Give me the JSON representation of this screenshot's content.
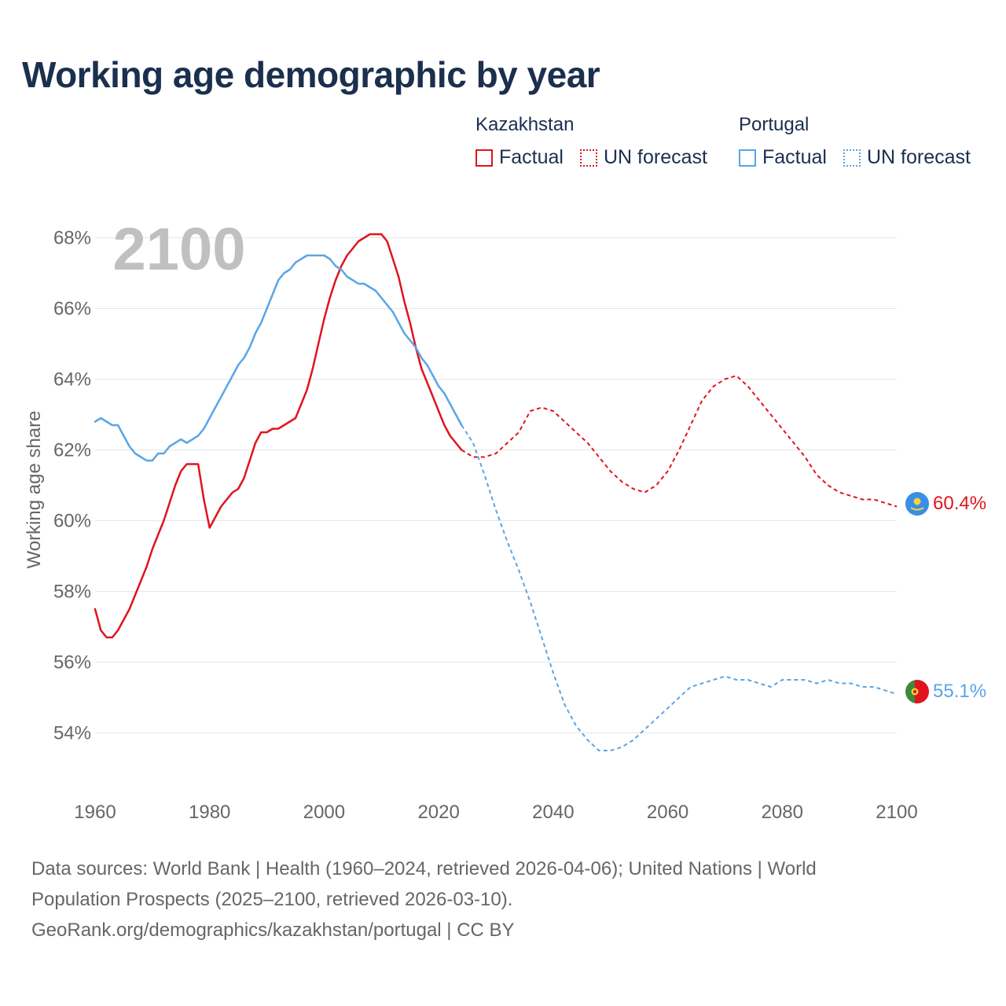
{
  "header": {
    "title": "Working age demographic by year"
  },
  "legend": {
    "groups": [
      {
        "name": "Kazakhstan",
        "factual_label": "Factual",
        "forecast_label": "UN forecast",
        "color": "#e0141e"
      },
      {
        "name": "Portugal",
        "factual_label": "Factual",
        "forecast_label": "UN forecast",
        "color": "#5aa5e6"
      }
    ]
  },
  "year_display": "2100",
  "end_labels": {
    "kazakhstan": "60.4%",
    "portugal": "55.1%"
  },
  "footer": {
    "line1": "Data sources: World Bank | Health (1960–2024, retrieved 2026-04-06); United Nations | World",
    "line2": "Population Prospects (2025–2100, retrieved 2026-03-10).",
    "line3": "GeoRank.org/demographics/kazakhstan/portugal | CC BY"
  },
  "colors": {
    "kazakhstan": "#e0141e",
    "portugal": "#5aa5e6",
    "grid": "#e6e6e6",
    "axis_text": "#666666"
  },
  "chart_data": {
    "type": "line",
    "title": "Working age demographic by year",
    "xlabel": "",
    "ylabel": "Working age share",
    "xlim": [
      1960,
      2100
    ],
    "ylim": [
      52.5,
      68.5
    ],
    "x_ticks": [
      1960,
      1980,
      2000,
      2020,
      2040,
      2060,
      2080,
      2100
    ],
    "x_tick_labels": [
      "1960",
      "1980",
      "2000",
      "2020",
      "2040",
      "2060",
      "2080",
      "2100"
    ],
    "y_ticks": [
      54,
      56,
      58,
      60,
      62,
      64,
      66,
      68
    ],
    "y_tick_labels": [
      "54%",
      "56%",
      "58%",
      "60%",
      "62%",
      "64%",
      "66%",
      "68%"
    ],
    "series": [
      {
        "name": "Kazakhstan Factual",
        "country": "Kazakhstan",
        "style": "solid",
        "x": [
          1960,
          1961,
          1962,
          1963,
          1964,
          1965,
          1966,
          1967,
          1968,
          1969,
          1970,
          1971,
          1972,
          1973,
          1974,
          1975,
          1976,
          1977,
          1978,
          1979,
          1980,
          1981,
          1982,
          1983,
          1984,
          1985,
          1986,
          1987,
          1988,
          1989,
          1990,
          1991,
          1992,
          1993,
          1994,
          1995,
          1996,
          1997,
          1998,
          1999,
          2000,
          2001,
          2002,
          2003,
          2004,
          2005,
          2006,
          2007,
          2008,
          2009,
          2010,
          2011,
          2012,
          2013,
          2014,
          2015,
          2016,
          2017,
          2018,
          2019,
          2020,
          2021,
          2022,
          2023,
          2024
        ],
        "y": [
          57.5,
          56.9,
          56.7,
          56.7,
          56.9,
          57.2,
          57.5,
          57.9,
          58.3,
          58.7,
          59.2,
          59.6,
          60.0,
          60.5,
          61.0,
          61.4,
          61.6,
          61.6,
          61.6,
          60.6,
          59.8,
          60.1,
          60.4,
          60.6,
          60.8,
          60.9,
          61.2,
          61.7,
          62.2,
          62.5,
          62.5,
          62.6,
          62.6,
          62.7,
          62.8,
          62.9,
          63.3,
          63.7,
          64.3,
          65.0,
          65.7,
          66.3,
          66.8,
          67.2,
          67.5,
          67.7,
          67.9,
          68.0,
          68.1,
          68.1,
          68.1,
          67.9,
          67.4,
          66.9,
          66.2,
          65.6,
          64.9,
          64.3,
          63.9,
          63.5,
          63.1,
          62.7,
          62.4,
          62.2,
          62.0
        ]
      },
      {
        "name": "Kazakhstan UN forecast",
        "country": "Kazakhstan",
        "style": "dotted",
        "x": [
          2024,
          2026,
          2028,
          2030,
          2032,
          2034,
          2036,
          2038,
          2040,
          2042,
          2044,
          2046,
          2048,
          2050,
          2052,
          2054,
          2056,
          2058,
          2060,
          2062,
          2064,
          2066,
          2068,
          2070,
          2072,
          2074,
          2076,
          2078,
          2080,
          2082,
          2084,
          2086,
          2088,
          2090,
          2092,
          2094,
          2096,
          2098,
          2100
        ],
        "y": [
          62.0,
          61.8,
          61.8,
          61.9,
          62.2,
          62.5,
          63.1,
          63.2,
          63.1,
          62.8,
          62.5,
          62.2,
          61.8,
          61.4,
          61.1,
          60.9,
          60.8,
          61.0,
          61.4,
          62.0,
          62.7,
          63.4,
          63.8,
          64.0,
          64.1,
          63.8,
          63.4,
          63.0,
          62.6,
          62.2,
          61.8,
          61.3,
          61.0,
          60.8,
          60.7,
          60.6,
          60.6,
          60.5,
          60.4
        ]
      },
      {
        "name": "Portugal Factual",
        "country": "Portugal",
        "style": "solid",
        "x": [
          1960,
          1961,
          1962,
          1963,
          1964,
          1965,
          1966,
          1967,
          1968,
          1969,
          1970,
          1971,
          1972,
          1973,
          1974,
          1975,
          1976,
          1977,
          1978,
          1979,
          1980,
          1981,
          1982,
          1983,
          1984,
          1985,
          1986,
          1987,
          1988,
          1989,
          1990,
          1991,
          1992,
          1993,
          1994,
          1995,
          1996,
          1997,
          1998,
          1999,
          2000,
          2001,
          2002,
          2003,
          2004,
          2005,
          2006,
          2007,
          2008,
          2009,
          2010,
          2011,
          2012,
          2013,
          2014,
          2015,
          2016,
          2017,
          2018,
          2019,
          2020,
          2021,
          2022,
          2023,
          2024
        ],
        "y": [
          62.8,
          62.9,
          62.8,
          62.7,
          62.7,
          62.4,
          62.1,
          61.9,
          61.8,
          61.7,
          61.7,
          61.9,
          61.9,
          62.1,
          62.2,
          62.3,
          62.2,
          62.3,
          62.4,
          62.6,
          62.9,
          63.2,
          63.5,
          63.8,
          64.1,
          64.4,
          64.6,
          64.9,
          65.3,
          65.6,
          66.0,
          66.4,
          66.8,
          67.0,
          67.1,
          67.3,
          67.4,
          67.5,
          67.5,
          67.5,
          67.5,
          67.4,
          67.2,
          67.1,
          66.9,
          66.8,
          66.7,
          66.7,
          66.6,
          66.5,
          66.3,
          66.1,
          65.9,
          65.6,
          65.3,
          65.1,
          64.9,
          64.6,
          64.4,
          64.1,
          63.8,
          63.6,
          63.3,
          63.0,
          62.7
        ]
      },
      {
        "name": "Portugal UN forecast",
        "country": "Portugal",
        "style": "dotted",
        "x": [
          2024,
          2026,
          2028,
          2030,
          2032,
          2034,
          2036,
          2038,
          2040,
          2042,
          2044,
          2046,
          2048,
          2050,
          2052,
          2054,
          2056,
          2058,
          2060,
          2062,
          2064,
          2066,
          2068,
          2070,
          2072,
          2074,
          2076,
          2078,
          2080,
          2082,
          2084,
          2086,
          2088,
          2090,
          2092,
          2094,
          2096,
          2098,
          2100
        ],
        "y": [
          62.7,
          62.2,
          61.3,
          60.3,
          59.4,
          58.6,
          57.7,
          56.7,
          55.7,
          54.8,
          54.2,
          53.8,
          53.5,
          53.5,
          53.6,
          53.8,
          54.1,
          54.4,
          54.7,
          55.0,
          55.3,
          55.4,
          55.5,
          55.6,
          55.5,
          55.5,
          55.4,
          55.3,
          55.5,
          55.5,
          55.5,
          55.4,
          55.5,
          55.4,
          55.4,
          55.3,
          55.3,
          55.2,
          55.1
        ]
      }
    ]
  }
}
